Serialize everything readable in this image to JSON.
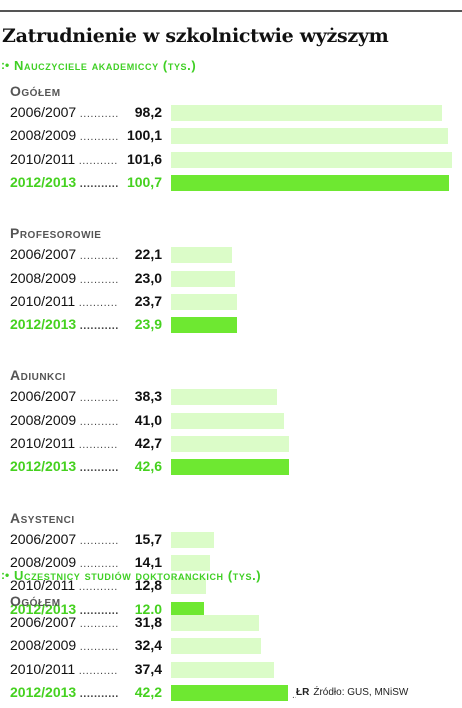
{
  "title": "Zatrudnienie w szkolnictwie wyższym",
  "source_logo": "ŁR",
  "source": "Źródło: GUS, MNiSW",
  "colors": {
    "accent": "#45d11f",
    "bar_light": "#dbfcc8",
    "bar_highlight": "#6ee831"
  },
  "chart_data": [
    {
      "type": "bar",
      "orientation": "horizontal",
      "title": "Nauczyciele akademiccy (tys.)",
      "groups": [
        {
          "name": "Ogółem",
          "categories": [
            "2006/2007",
            "2008/2009",
            "2010/2011",
            "2012/2013"
          ],
          "values": [
            98.2,
            100.1,
            101.6,
            100.7
          ],
          "value_labels": [
            "98,2",
            "100,1",
            "101,6",
            "100,7"
          ]
        },
        {
          "name": "Profesorowie",
          "categories": [
            "2006/2007",
            "2008/2009",
            "2010/2011",
            "2012/2013"
          ],
          "values": [
            22.1,
            23.0,
            23.7,
            23.9
          ],
          "value_labels": [
            "22,1",
            "23,0",
            "23,7",
            "23,9"
          ]
        },
        {
          "name": "Adiunkci",
          "categories": [
            "2006/2007",
            "2008/2009",
            "2010/2011",
            "2012/2013"
          ],
          "values": [
            38.3,
            41.0,
            42.7,
            42.6
          ],
          "value_labels": [
            "38,3",
            "41,0",
            "42,7",
            "42,6"
          ]
        },
        {
          "name": "Asystenci",
          "categories": [
            "2006/2007",
            "2008/2009",
            "2010/2011",
            "2012/2013"
          ],
          "values": [
            15.7,
            14.1,
            12.8,
            12.0
          ],
          "value_labels": [
            "15,7",
            "14,1",
            "12,8",
            "12,0"
          ]
        }
      ],
      "highlight_category": "2012/2013",
      "xlim": [
        0,
        102
      ]
    },
    {
      "type": "bar",
      "orientation": "horizontal",
      "title": "Uczestnicy studiów doktoranckich (tys.)",
      "groups": [
        {
          "name": "Ogółem",
          "categories": [
            "2006/2007",
            "2008/2009",
            "2010/2011",
            "2012/2013"
          ],
          "values": [
            31.8,
            32.4,
            37.4,
            42.2
          ],
          "value_labels": [
            "31,8",
            "32,4",
            "37,4",
            "42,2"
          ]
        }
      ],
      "highlight_category": "2012/2013",
      "xlim": [
        0,
        102
      ]
    }
  ]
}
